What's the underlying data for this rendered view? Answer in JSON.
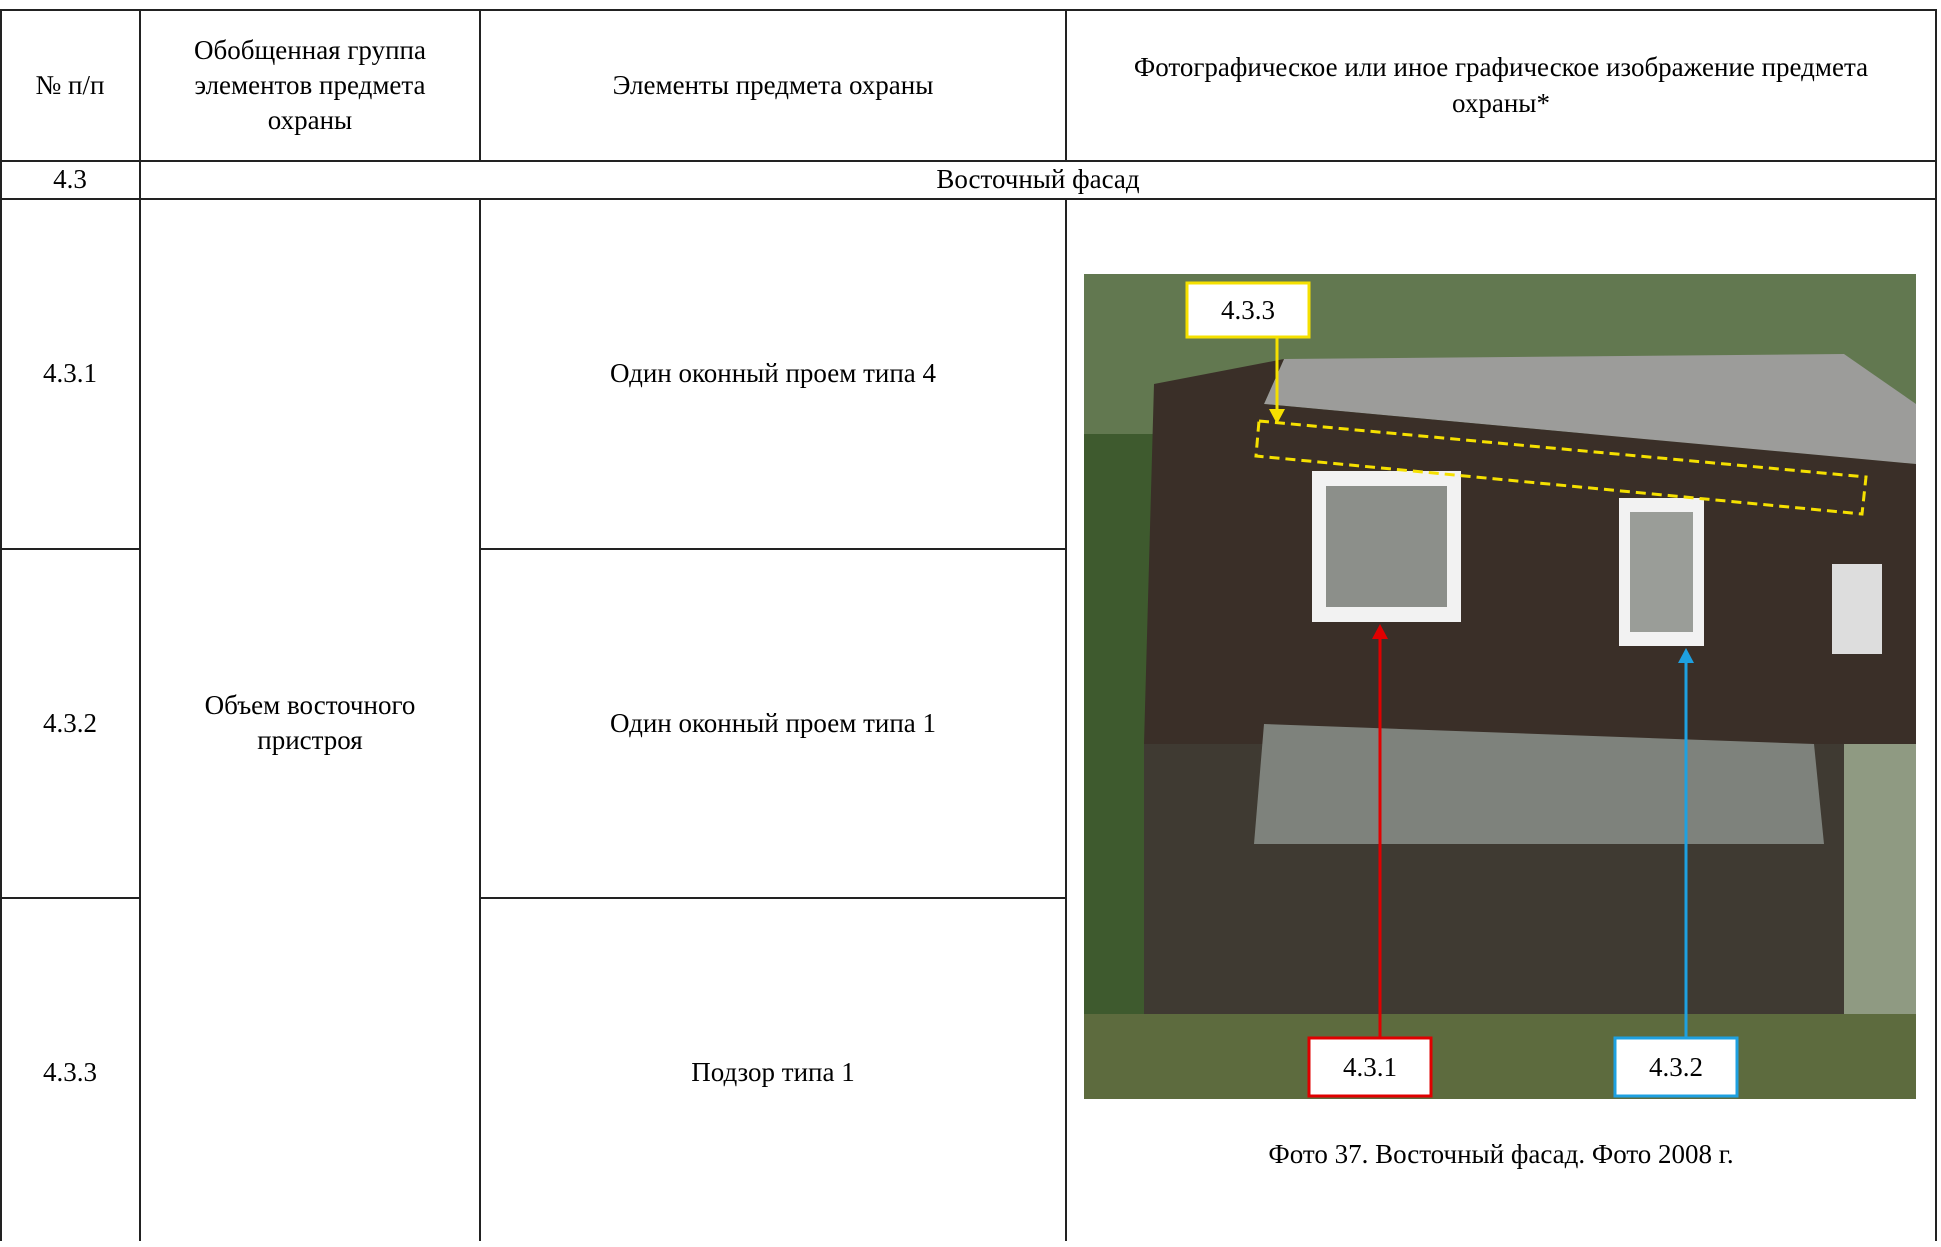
{
  "table": {
    "header": [
      "№ п/п",
      "Обобщенная группа элементов предмета охраны",
      "Элементы предмета охраны",
      "Фотографическое или иное графическое изображение предмета охраны*"
    ],
    "section": {
      "number": "4.3",
      "title": "Восточный фасад"
    },
    "group": "Объем восточного пристроя",
    "rows": [
      {
        "number": "4.3.1",
        "element": "Один оконный проем типа 4"
      },
      {
        "number": "4.3.2",
        "element": "Один оконный проем типа 1"
      },
      {
        "number": "4.3.3",
        "element": "Подзор типа 1"
      }
    ]
  },
  "photo": {
    "labels": [
      "4.3.3",
      "4.3.1",
      "4.3.2"
    ],
    "caption": "Фото 37. Восточный фасад. Фото 2008 г."
  }
}
